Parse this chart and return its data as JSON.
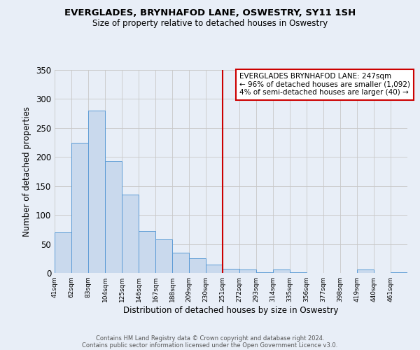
{
  "title1": "EVERGLADES, BRYNHAFOD LANE, OSWESTRY, SY11 1SH",
  "title2": "Size of property relative to detached houses in Oswestry",
  "xlabel": "Distribution of detached houses by size in Oswestry",
  "ylabel": "Number of detached properties",
  "bar_values": [
    70,
    224,
    280,
    193,
    135,
    72,
    58,
    35,
    25,
    15,
    7,
    6,
    1,
    6,
    1,
    0,
    0,
    0,
    6,
    0,
    1
  ],
  "bin_edges": [
    41,
    62,
    83,
    104,
    125,
    146,
    167,
    188,
    209,
    230,
    251,
    272,
    293,
    314,
    335,
    356,
    377,
    398,
    419,
    440,
    461,
    482
  ],
  "tick_labels": [
    "41sqm",
    "62sqm",
    "83sqm",
    "104sqm",
    "125sqm",
    "146sqm",
    "167sqm",
    "188sqm",
    "209sqm",
    "230sqm",
    "251sqm",
    "272sqm",
    "293sqm",
    "314sqm",
    "335sqm",
    "356sqm",
    "377sqm",
    "398sqm",
    "419sqm",
    "440sqm",
    "461sqm"
  ],
  "bar_color": "#c9d9ed",
  "bar_edge_color": "#5b9bd5",
  "vline_x": 251,
  "vline_color": "#cc0000",
  "ylim": [
    0,
    350
  ],
  "yticks": [
    0,
    50,
    100,
    150,
    200,
    250,
    300,
    350
  ],
  "annotation_title": "EVERGLADES BRYNHAFOD LANE: 247sqm",
  "annotation_line1": "← 96% of detached houses are smaller (1,092)",
  "annotation_line2": "4% of semi-detached houses are larger (40) →",
  "annotation_box_color": "#cc0000",
  "fig_background": "#e8eef7",
  "axes_background": "#e8eef7",
  "footer1": "Contains HM Land Registry data © Crown copyright and database right 2024.",
  "footer2": "Contains public sector information licensed under the Open Government Licence v3.0."
}
